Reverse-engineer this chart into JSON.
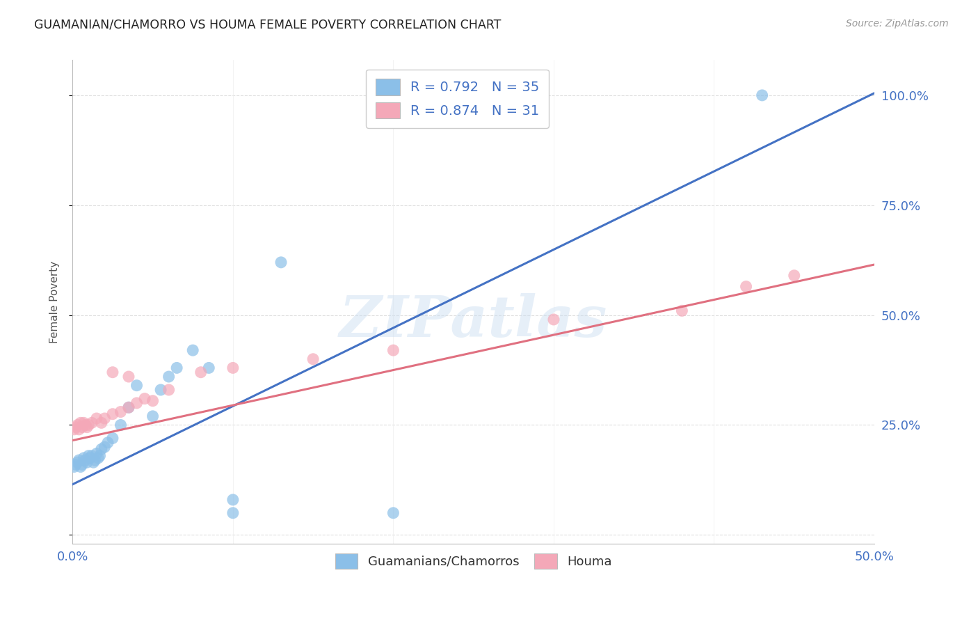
{
  "title": "GUAMANIAN/CHAMORRO VS HOUMA FEMALE POVERTY CORRELATION CHART",
  "source": "Source: ZipAtlas.com",
  "ylabel": "Female Poverty",
  "xlim": [
    0.0,
    0.5
  ],
  "ylim": [
    -0.02,
    1.08
  ],
  "ytick_labels": [
    "",
    "25.0%",
    "50.0%",
    "75.0%",
    "100.0%"
  ],
  "ytick_values": [
    0.0,
    0.25,
    0.5,
    0.75,
    1.0
  ],
  "xtick_labels": [
    "0.0%",
    "",
    "",
    "",
    "",
    "50.0%"
  ],
  "xtick_values": [
    0.0,
    0.1,
    0.2,
    0.3,
    0.4,
    0.5
  ],
  "blue_color": "#8BBFE8",
  "pink_color": "#F4A8B8",
  "blue_line_color": "#4472C4",
  "pink_line_color": "#E07080",
  "legend_R_blue": "R = 0.792",
  "legend_N_blue": "N = 35",
  "legend_R_pink": "R = 0.874",
  "legend_N_pink": "N = 31",
  "blue_line_x": [
    0.0,
    0.5
  ],
  "blue_line_y": [
    0.115,
    1.005
  ],
  "pink_line_x": [
    0.0,
    0.5
  ],
  "pink_line_y": [
    0.215,
    0.615
  ],
  "blue_scatter_x": [
    0.001,
    0.002,
    0.003,
    0.004,
    0.005,
    0.006,
    0.007,
    0.008,
    0.009,
    0.01,
    0.011,
    0.012,
    0.013,
    0.014,
    0.015,
    0.016,
    0.017,
    0.018,
    0.02,
    0.022,
    0.025,
    0.03,
    0.035,
    0.04,
    0.05,
    0.055,
    0.06,
    0.065,
    0.075,
    0.085,
    0.1,
    0.13,
    0.2,
    0.43,
    0.1
  ],
  "blue_scatter_y": [
    0.155,
    0.16,
    0.165,
    0.17,
    0.155,
    0.16,
    0.175,
    0.17,
    0.165,
    0.18,
    0.175,
    0.18,
    0.165,
    0.17,
    0.185,
    0.175,
    0.18,
    0.195,
    0.2,
    0.21,
    0.22,
    0.25,
    0.29,
    0.34,
    0.27,
    0.33,
    0.36,
    0.38,
    0.42,
    0.38,
    0.05,
    0.62,
    0.05,
    1.0,
    0.08
  ],
  "pink_scatter_x": [
    0.001,
    0.002,
    0.003,
    0.004,
    0.005,
    0.006,
    0.007,
    0.008,
    0.009,
    0.01,
    0.012,
    0.015,
    0.018,
    0.02,
    0.025,
    0.03,
    0.035,
    0.04,
    0.045,
    0.05,
    0.06,
    0.08,
    0.1,
    0.15,
    0.2,
    0.3,
    0.38,
    0.42,
    0.45,
    0.035,
    0.025
  ],
  "pink_scatter_y": [
    0.24,
    0.245,
    0.25,
    0.24,
    0.255,
    0.245,
    0.255,
    0.25,
    0.245,
    0.25,
    0.255,
    0.265,
    0.255,
    0.265,
    0.275,
    0.28,
    0.29,
    0.3,
    0.31,
    0.305,
    0.33,
    0.37,
    0.38,
    0.4,
    0.42,
    0.49,
    0.51,
    0.565,
    0.59,
    0.36,
    0.37
  ],
  "watermark": "ZIPatlas",
  "background_color": "#FFFFFF",
  "grid_color": "#DDDDDD"
}
